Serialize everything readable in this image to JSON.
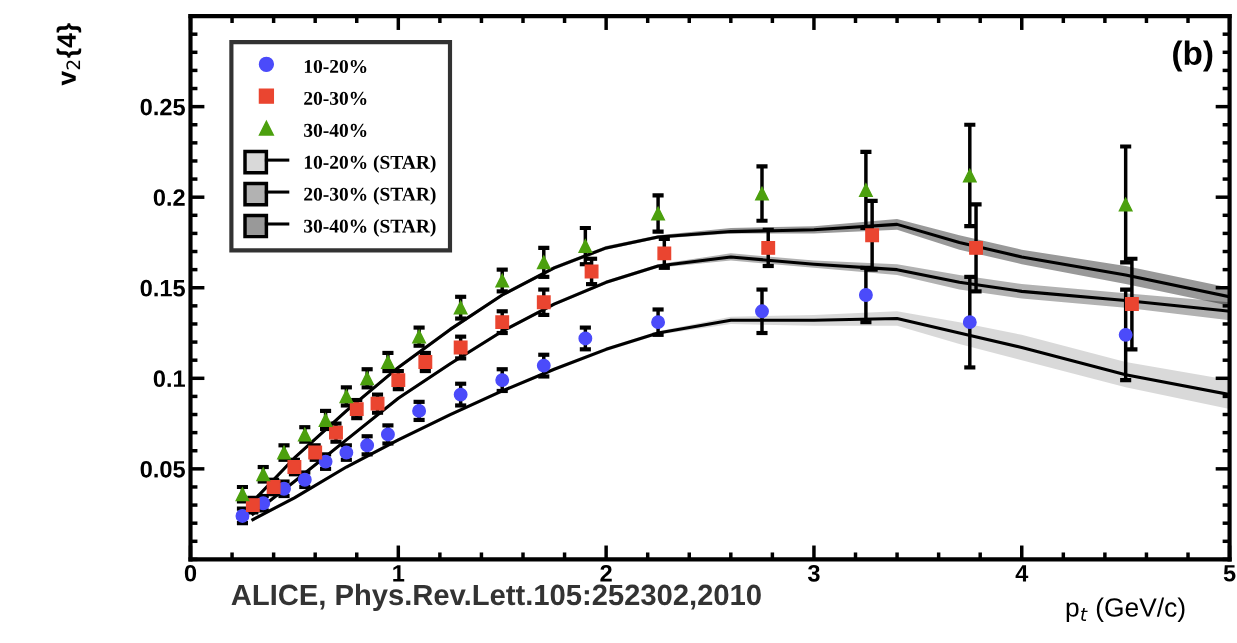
{
  "chart_data": {
    "type": "scatter",
    "xlabel": "p$_{t}$ (GeV/c)",
    "ylabel": "v$_{2}${4}",
    "annotations": [
      "(b)",
      "ALICE, Phys.Rev.Lett.105:252302,2010"
    ],
    "xlim": [
      0,
      5
    ],
    "ylim": [
      0,
      0.3
    ],
    "xticks": [
      0,
      1,
      2,
      3,
      4,
      5
    ],
    "yticks": [
      0.05,
      0.1,
      0.15,
      0.2,
      0.25
    ],
    "grid": false,
    "legend": "top left",
    "series": [
      {
        "name": "10-20%",
        "marker": "circle",
        "color": "#4b4bfa",
        "x": [
          0.25,
          0.35,
          0.45,
          0.55,
          0.65,
          0.75,
          0.85,
          0.95,
          1.1,
          1.3,
          1.5,
          1.7,
          1.9,
          2.25,
          2.75,
          3.25,
          3.75,
          4.5
        ],
        "values": [
          0.024,
          0.031,
          0.039,
          0.044,
          0.054,
          0.059,
          0.063,
          0.069,
          0.082,
          0.091,
          0.099,
          0.107,
          0.122,
          0.131,
          0.137,
          0.146,
          0.131,
          0.124
        ],
        "errors": [
          0.004,
          0.004,
          0.004,
          0.004,
          0.004,
          0.004,
          0.005,
          0.005,
          0.005,
          0.006,
          0.006,
          0.006,
          0.006,
          0.007,
          0.012,
          0.015,
          0.025,
          0.025
        ]
      },
      {
        "name": "20-30%",
        "marker": "square",
        "color": "#ea4530",
        "x": [
          0.3,
          0.4,
          0.5,
          0.6,
          0.7,
          0.8,
          0.9,
          1.0,
          1.13,
          1.3,
          1.5,
          1.7,
          1.93,
          2.28,
          2.78,
          3.28,
          3.78,
          4.53
        ],
        "values": [
          0.03,
          0.04,
          0.051,
          0.059,
          0.07,
          0.083,
          0.086,
          0.099,
          0.109,
          0.117,
          0.131,
          0.142,
          0.159,
          0.169,
          0.172,
          0.179,
          0.172,
          0.141
        ],
        "errors": [
          0.004,
          0.004,
          0.004,
          0.004,
          0.005,
          0.005,
          0.005,
          0.005,
          0.005,
          0.006,
          0.006,
          0.007,
          0.007,
          0.008,
          0.01,
          0.019,
          0.024,
          0.025
        ]
      },
      {
        "name": "30-40%",
        "marker": "triangle",
        "color": "#4ca00e",
        "x": [
          0.25,
          0.35,
          0.45,
          0.55,
          0.65,
          0.75,
          0.85,
          0.95,
          1.1,
          1.3,
          1.5,
          1.7,
          1.9,
          2.25,
          2.75,
          3.25,
          3.75,
          4.5
        ],
        "values": [
          0.036,
          0.047,
          0.059,
          0.069,
          0.077,
          0.09,
          0.1,
          0.109,
          0.123,
          0.139,
          0.154,
          0.164,
          0.173,
          0.191,
          0.202,
          0.204,
          0.212,
          0.196
        ],
        "errors": [
          0.004,
          0.004,
          0.004,
          0.004,
          0.005,
          0.005,
          0.005,
          0.005,
          0.005,
          0.006,
          0.006,
          0.008,
          0.01,
          0.01,
          0.015,
          0.021,
          0.028,
          0.032
        ]
      },
      {
        "name": "10-20% (STAR)",
        "type": "line",
        "color": "#000000",
        "x": [
          0.3,
          0.5,
          0.75,
          1.0,
          1.25,
          1.5,
          1.75,
          2.0,
          2.25,
          2.6,
          3.0,
          3.4,
          3.7,
          4.0,
          4.5,
          5.0
        ],
        "values": [
          0.022,
          0.034,
          0.051,
          0.066,
          0.08,
          0.093,
          0.105,
          0.116,
          0.125,
          0.132,
          0.132,
          0.133,
          0.125,
          0.117,
          0.102,
          0.091
        ],
        "lower": [
          0.021,
          0.033,
          0.05,
          0.065,
          0.079,
          0.092,
          0.104,
          0.115,
          0.124,
          0.13,
          0.129,
          0.129,
          0.119,
          0.11,
          0.095,
          0.083
        ],
        "upper": [
          0.023,
          0.035,
          0.052,
          0.067,
          0.081,
          0.094,
          0.106,
          0.117,
          0.126,
          0.134,
          0.135,
          0.137,
          0.131,
          0.124,
          0.109,
          0.099
        ]
      },
      {
        "name": "20-30% (STAR)",
        "type": "line",
        "color": "#000000",
        "x": [
          0.3,
          0.5,
          0.75,
          1.0,
          1.25,
          1.5,
          1.75,
          2.0,
          2.25,
          2.6,
          3.0,
          3.4,
          3.7,
          4.0,
          4.5,
          5.0
        ],
        "values": [
          0.025,
          0.043,
          0.066,
          0.089,
          0.108,
          0.126,
          0.141,
          0.153,
          0.162,
          0.167,
          0.163,
          0.16,
          0.153,
          0.148,
          0.143,
          0.137
        ],
        "lower": [
          0.024,
          0.042,
          0.065,
          0.088,
          0.107,
          0.125,
          0.14,
          0.152,
          0.161,
          0.165,
          0.161,
          0.157,
          0.149,
          0.144,
          0.139,
          0.132
        ],
        "upper": [
          0.026,
          0.044,
          0.067,
          0.09,
          0.109,
          0.127,
          0.142,
          0.154,
          0.163,
          0.169,
          0.165,
          0.163,
          0.157,
          0.152,
          0.147,
          0.142
        ]
      },
      {
        "name": "30-40% (STAR)",
        "type": "line",
        "color": "#000000",
        "x": [
          0.3,
          0.5,
          0.75,
          1.0,
          1.25,
          1.5,
          1.75,
          2.0,
          2.25,
          2.6,
          3.0,
          3.4,
          3.7,
          4.0,
          4.5,
          5.0
        ],
        "values": [
          0.032,
          0.056,
          0.082,
          0.106,
          0.127,
          0.146,
          0.161,
          0.172,
          0.178,
          0.181,
          0.182,
          0.185,
          0.175,
          0.167,
          0.157,
          0.145
        ],
        "lower": [
          0.031,
          0.055,
          0.081,
          0.105,
          0.126,
          0.145,
          0.16,
          0.171,
          0.177,
          0.18,
          0.18,
          0.182,
          0.171,
          0.163,
          0.152,
          0.14
        ],
        "upper": [
          0.033,
          0.057,
          0.083,
          0.107,
          0.128,
          0.147,
          0.162,
          0.173,
          0.179,
          0.183,
          0.184,
          0.188,
          0.179,
          0.171,
          0.162,
          0.15
        ]
      }
    ]
  }
}
